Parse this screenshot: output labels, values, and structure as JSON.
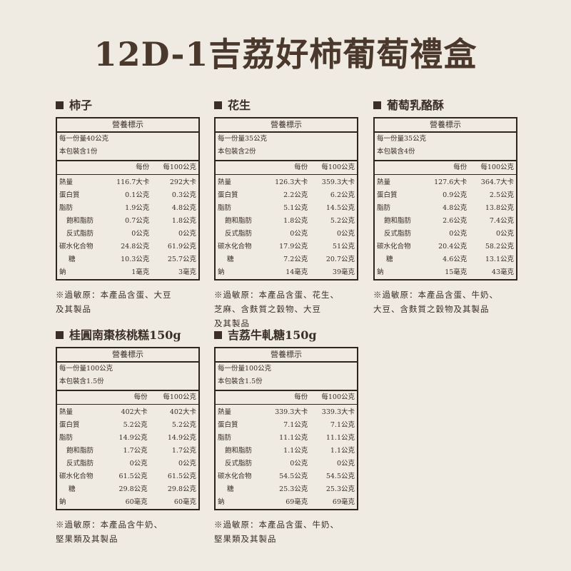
{
  "title": "12D-1吉荔好柿葡萄禮盒",
  "table_title": "營養標示",
  "col_headers": [
    "每份",
    "每100公克"
  ],
  "row_labels": [
    "熱量",
    "蛋白質",
    "脂肪",
    "飽和脂肪",
    "反式脂肪",
    "碳水化合物",
    "糖",
    "鈉"
  ],
  "products": [
    {
      "name": "柿子",
      "serving": "每一份量40公克",
      "servings": "本包裝含1份",
      "per_serving": [
        "116.7大卡",
        "0.1公克",
        "1.9公克",
        "0.7公克",
        "0公克",
        "24.8公克",
        "10.3公克",
        "1毫克"
      ],
      "per_100g": [
        "292大卡",
        "0.3公克",
        "4.8公克",
        "1.8公克",
        "0公克",
        "61.9公克",
        "25.7公克",
        "3毫克"
      ],
      "allergen": [
        "※過敏原：本產品含蛋、大豆",
        "及其製品"
      ]
    },
    {
      "name": "花生",
      "serving": "每一份量35公克",
      "servings": "本包裝含2份",
      "per_serving": [
        "126.3大卡",
        "2.2公克",
        "5.1公克",
        "1.8公克",
        "0公克",
        "17.9公克",
        "7.2公克",
        "14毫克"
      ],
      "per_100g": [
        "359.3大卡",
        "6.2公克",
        "14.5公克",
        "5.2公克",
        "0公克",
        "51公克",
        "20.7公克",
        "39毫克"
      ],
      "allergen": [
        "※過敏原：本產品含蛋、花生、",
        "芝麻、含麩質之穀物、大豆",
        "及其製品"
      ]
    },
    {
      "name": "葡萄乳酪酥",
      "serving": "每一份量35公克",
      "servings": "本包裝含4份",
      "per_serving": [
        "127.6大卡",
        "0.9公克",
        "4.8公克",
        "2.6公克",
        "0公克",
        "20.4公克",
        "4.6公克",
        "15毫克"
      ],
      "per_100g": [
        "364.7大卡",
        "2.5公克",
        "13.8公克",
        "7.4公克",
        "0公克",
        "58.2公克",
        "13.1公克",
        "43毫克"
      ],
      "allergen": [
        "※過敏原：本產品含蛋、牛奶、",
        "大豆、含麩質之穀物及其製品"
      ]
    },
    {
      "name": "桂圓南棗核桃糕150g",
      "serving": "每一份量100公克",
      "servings": "本包裝含1.5份",
      "per_serving": [
        "402大卡",
        "5.2公克",
        "14.9公克",
        "1.7公克",
        "0公克",
        "61.5公克",
        "29.8公克",
        "60毫克"
      ],
      "per_100g": [
        "402大卡",
        "5.2公克",
        "14.9公克",
        "1.7公克",
        "0公克",
        "61.5公克",
        "29.8公克",
        "60毫克"
      ],
      "allergen": [
        "※過敏原：本產品含牛奶、",
        "堅果類及其製品"
      ]
    },
    {
      "name": "吉荔牛軋糖150g",
      "serving": "每一份量100公克",
      "servings": "本包裝含1.5份",
      "per_serving": [
        "339.3大卡",
        "7.1公克",
        "11.1公克",
        "1.1公克",
        "0公克",
        "54.5公克",
        "25.3公克",
        "69毫克"
      ],
      "per_100g": [
        "339.3大卡",
        "7.1公克",
        "11.1公克",
        "1.1公克",
        "0公克",
        "54.5公克",
        "25.3公克",
        "69毫克"
      ],
      "allergen": [
        "※過敏原：本產品含蛋、牛奶、",
        "堅果類及其製品"
      ]
    }
  ]
}
